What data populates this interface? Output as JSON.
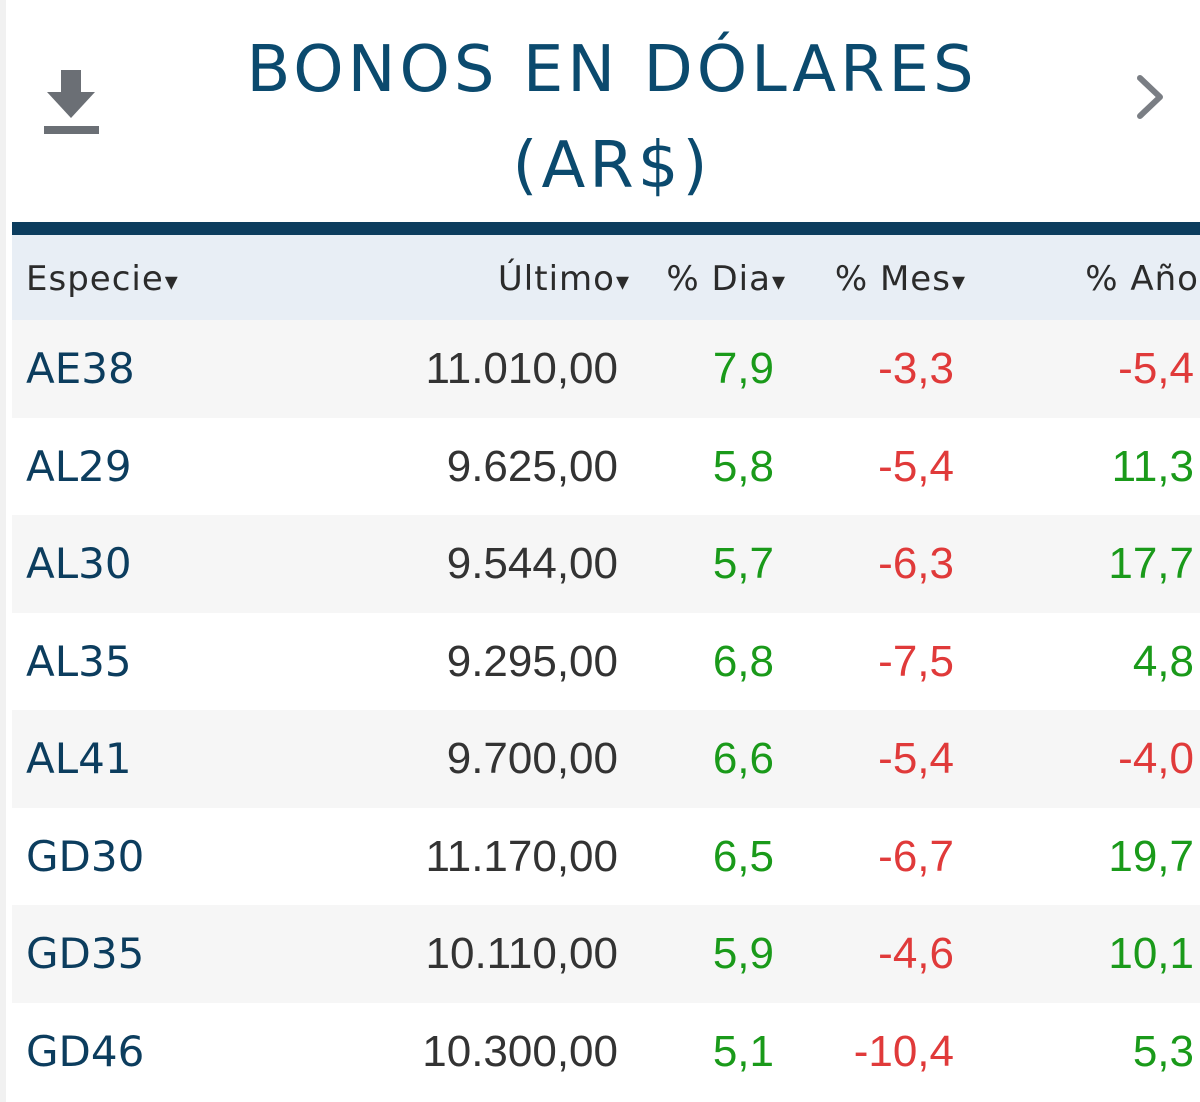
{
  "header": {
    "title": "BONOS EN DÓLARES (AR$)",
    "download_icon": "download-icon",
    "next_icon": "chevron-right-icon"
  },
  "colors": {
    "title": "#0b4a6e",
    "divider": "#0c3d5e",
    "header_bg": "#e8eef5",
    "positive": "#1a9a1a",
    "negative": "#e03a3a"
  },
  "table": {
    "columns": [
      {
        "label": "Especie",
        "sort": "▾"
      },
      {
        "label": "Último",
        "sort": "▾"
      },
      {
        "label": "% Dia",
        "sort": "▾"
      },
      {
        "label": "% Mes",
        "sort": "▾"
      },
      {
        "label": "% Año",
        "sort": "▾"
      }
    ],
    "rows": [
      {
        "especie": "AE38",
        "ultimo": "11.010,00",
        "dia": "7,9",
        "mes": "-3,3",
        "ano": "-5,4"
      },
      {
        "especie": "AL29",
        "ultimo": "9.625,00",
        "dia": "5,8",
        "mes": "-5,4",
        "ano": "11,3"
      },
      {
        "especie": "AL30",
        "ultimo": "9.544,00",
        "dia": "5,7",
        "mes": "-6,3",
        "ano": "17,7"
      },
      {
        "especie": "AL35",
        "ultimo": "9.295,00",
        "dia": "6,8",
        "mes": "-7,5",
        "ano": "4,8"
      },
      {
        "especie": "AL41",
        "ultimo": "9.700,00",
        "dia": "6,6",
        "mes": "-5,4",
        "ano": "-4,0"
      },
      {
        "especie": "GD30",
        "ultimo": "11.170,00",
        "dia": "6,5",
        "mes": "-6,7",
        "ano": "19,7"
      },
      {
        "especie": "GD35",
        "ultimo": "10.110,00",
        "dia": "5,9",
        "mes": "-4,6",
        "ano": "10,1"
      },
      {
        "especie": "GD46",
        "ultimo": "10.300,00",
        "dia": "5,1",
        "mes": "-10,4",
        "ano": "5,3"
      }
    ]
  }
}
